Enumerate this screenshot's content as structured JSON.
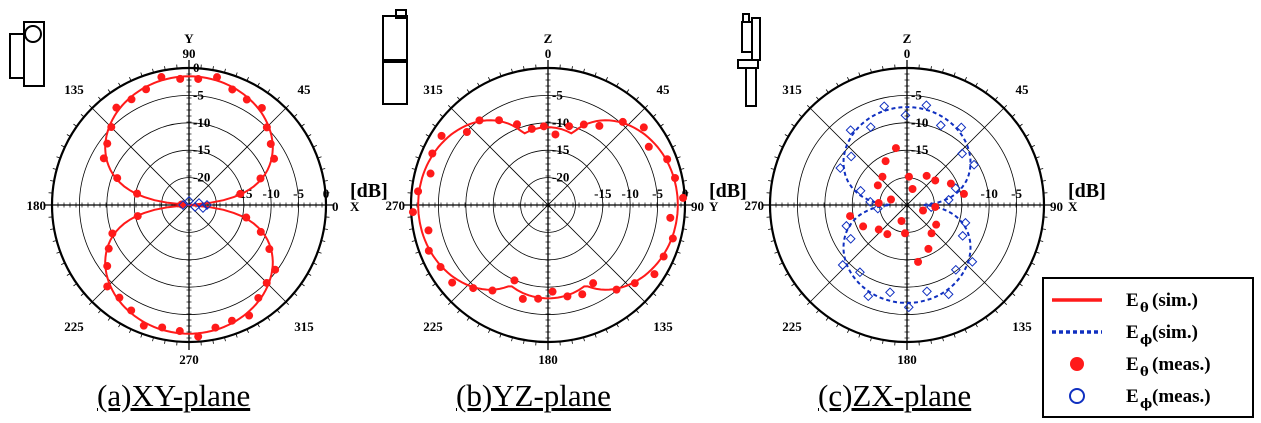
{
  "colors": {
    "e_theta": "#ff1a1a",
    "e_phi": "#1030c0",
    "grid": "#000000"
  },
  "legend": {
    "items": [
      {
        "symbol": "E",
        "sub": "θ",
        "text": "(sim.)",
        "style": "solid-line",
        "color": "#ff1a1a"
      },
      {
        "symbol": "E",
        "sub": "ϕ",
        "text": "(sim.)",
        "style": "dashed-line",
        "color": "#1030c0"
      },
      {
        "symbol": "E",
        "sub": "θ",
        "text": "(meas.)",
        "style": "filled-circle",
        "color": "#ff1a1a"
      },
      {
        "symbol": "E",
        "sub": "ϕ",
        "text": "(meas.)",
        "style": "open-circle",
        "color": "#1030c0"
      }
    ]
  },
  "chart_data": [
    {
      "type": "polar",
      "caption": "(a)XY-plane",
      "unit": "[dB]",
      "rlim": [
        -25,
        0
      ],
      "radial_ticks": [
        "0",
        "-5",
        "-10",
        "-15",
        "-20"
      ],
      "radial_ticks_right": [
        "-15",
        "-10",
        "-5",
        "0"
      ],
      "angle_labels": {
        "top": "90",
        "upper_right": "45",
        "right": "0",
        "lower_right": "315",
        "bottom": "270",
        "lower_left": "225",
        "left": "180",
        "upper_left": "135"
      },
      "axis_names": {
        "top": "Y",
        "right": "X"
      },
      "series": [
        {
          "kind": "sim",
          "style": "solid",
          "color": "#ff1a1a",
          "pattern": "cos-lobes-vertical",
          "peak_dB": -1.5,
          "points": []
        },
        {
          "kind": "meas",
          "style": "filled",
          "color": "#ff1a1a",
          "pattern": "cos-lobes-vertical",
          "peak_dB": -1.5,
          "count": 44
        },
        {
          "kind": "meas",
          "style": "open",
          "color": "#1030c0",
          "pattern": "small-blob",
          "level_dB": -22,
          "count": 6
        }
      ]
    },
    {
      "type": "polar",
      "caption": "(b)YZ-plane",
      "unit": "[dB]",
      "rlim": [
        -25,
        0
      ],
      "radial_ticks": [
        "-5",
        "-10",
        "-15",
        "-20"
      ],
      "radial_ticks_right": [
        "-15",
        "-10",
        "-5",
        "0"
      ],
      "angle_labels": {
        "top": "0",
        "upper_right": "45",
        "right": "90",
        "lower_right": "135",
        "bottom": "180",
        "lower_left": "225",
        "left": "270",
        "upper_left": "315"
      },
      "axis_names": {
        "top": "Z",
        "right": "Y"
      },
      "series": [
        {
          "kind": "sim",
          "style": "solid",
          "color": "#ff1a1a",
          "pattern": "horizontal-plus-small-vertical"
        },
        {
          "kind": "meas",
          "style": "filled",
          "color": "#ff1a1a",
          "pattern": "horizontal-plus-small-vertical",
          "count": 40
        }
      ]
    },
    {
      "type": "polar",
      "caption": "(c)ZX-plane",
      "unit": "[dB]",
      "rlim": [
        -25,
        0
      ],
      "radial_ticks": [
        "-5",
        "-10",
        "-15"
      ],
      "radial_ticks_right": [
        "-10",
        "-5"
      ],
      "angle_labels": {
        "top": "0",
        "upper_right": "45",
        "right": "90",
        "lower_right": "135",
        "bottom": "180",
        "lower_left": "225",
        "left": "270",
        "upper_left": "315"
      },
      "axis_names": {
        "top": "Z",
        "right": "X"
      },
      "series": [
        {
          "kind": "sim",
          "style": "dashed",
          "color": "#1030c0",
          "pattern": "vertical-lobes-low"
        },
        {
          "kind": "meas",
          "style": "filled",
          "color": "#ff1a1a",
          "pattern": "scatter-low",
          "count": 24
        },
        {
          "kind": "meas",
          "style": "open",
          "color": "#1030c0",
          "pattern": "vertical-lobes-low",
          "count": 30
        }
      ]
    }
  ]
}
